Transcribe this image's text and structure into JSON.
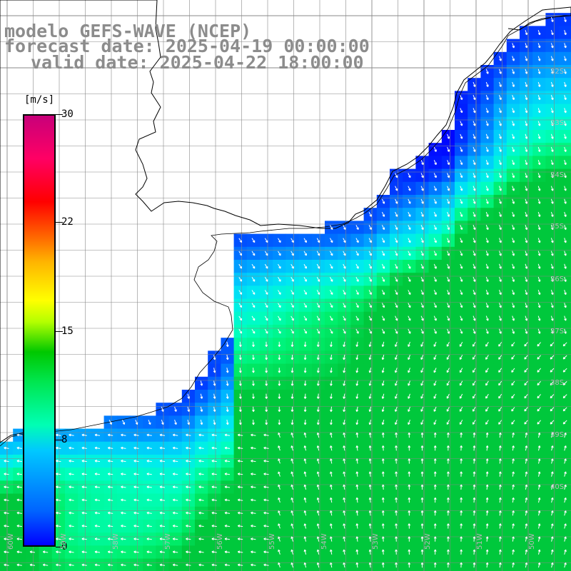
{
  "header": {
    "line1": "modelo GEFS-WAVE (NCEP)",
    "line2": "forecast date: 2025-04-19 00:00:00",
    "line3": "valid date: 2025-04-22 18:00:00"
  },
  "colorbar": {
    "unit": "[m/s]",
    "ticks": [
      "30",
      "22",
      "15",
      "8",
      "0"
    ],
    "tick_values": [
      30,
      22,
      15,
      8,
      0
    ],
    "colors": [
      "#0000ff",
      "#0064ff",
      "#00c8ff",
      "#00ffb4",
      "#00e650",
      "#00c800",
      "#b4ff00",
      "#ffff00",
      "#ffb400",
      "#ff6400",
      "#ff0000",
      "#ff0064",
      "#c8007a"
    ]
  },
  "lat_labels": [
    "32S",
    "33S",
    "34S",
    "35S",
    "36S",
    "37S",
    "38S",
    "39S",
    "40S"
  ],
  "lon_labels": [
    "60W",
    "59W",
    "58W",
    "57W",
    "56W",
    "55W",
    "54W",
    "53W",
    "52W",
    "51W",
    "50W"
  ],
  "map": {
    "quantity": "wind speed",
    "unit": "m/s",
    "land_color": "#ffffff",
    "coastline_color": "#000000",
    "grid_color": "#888888",
    "arrow_color": "#ffffff"
  }
}
